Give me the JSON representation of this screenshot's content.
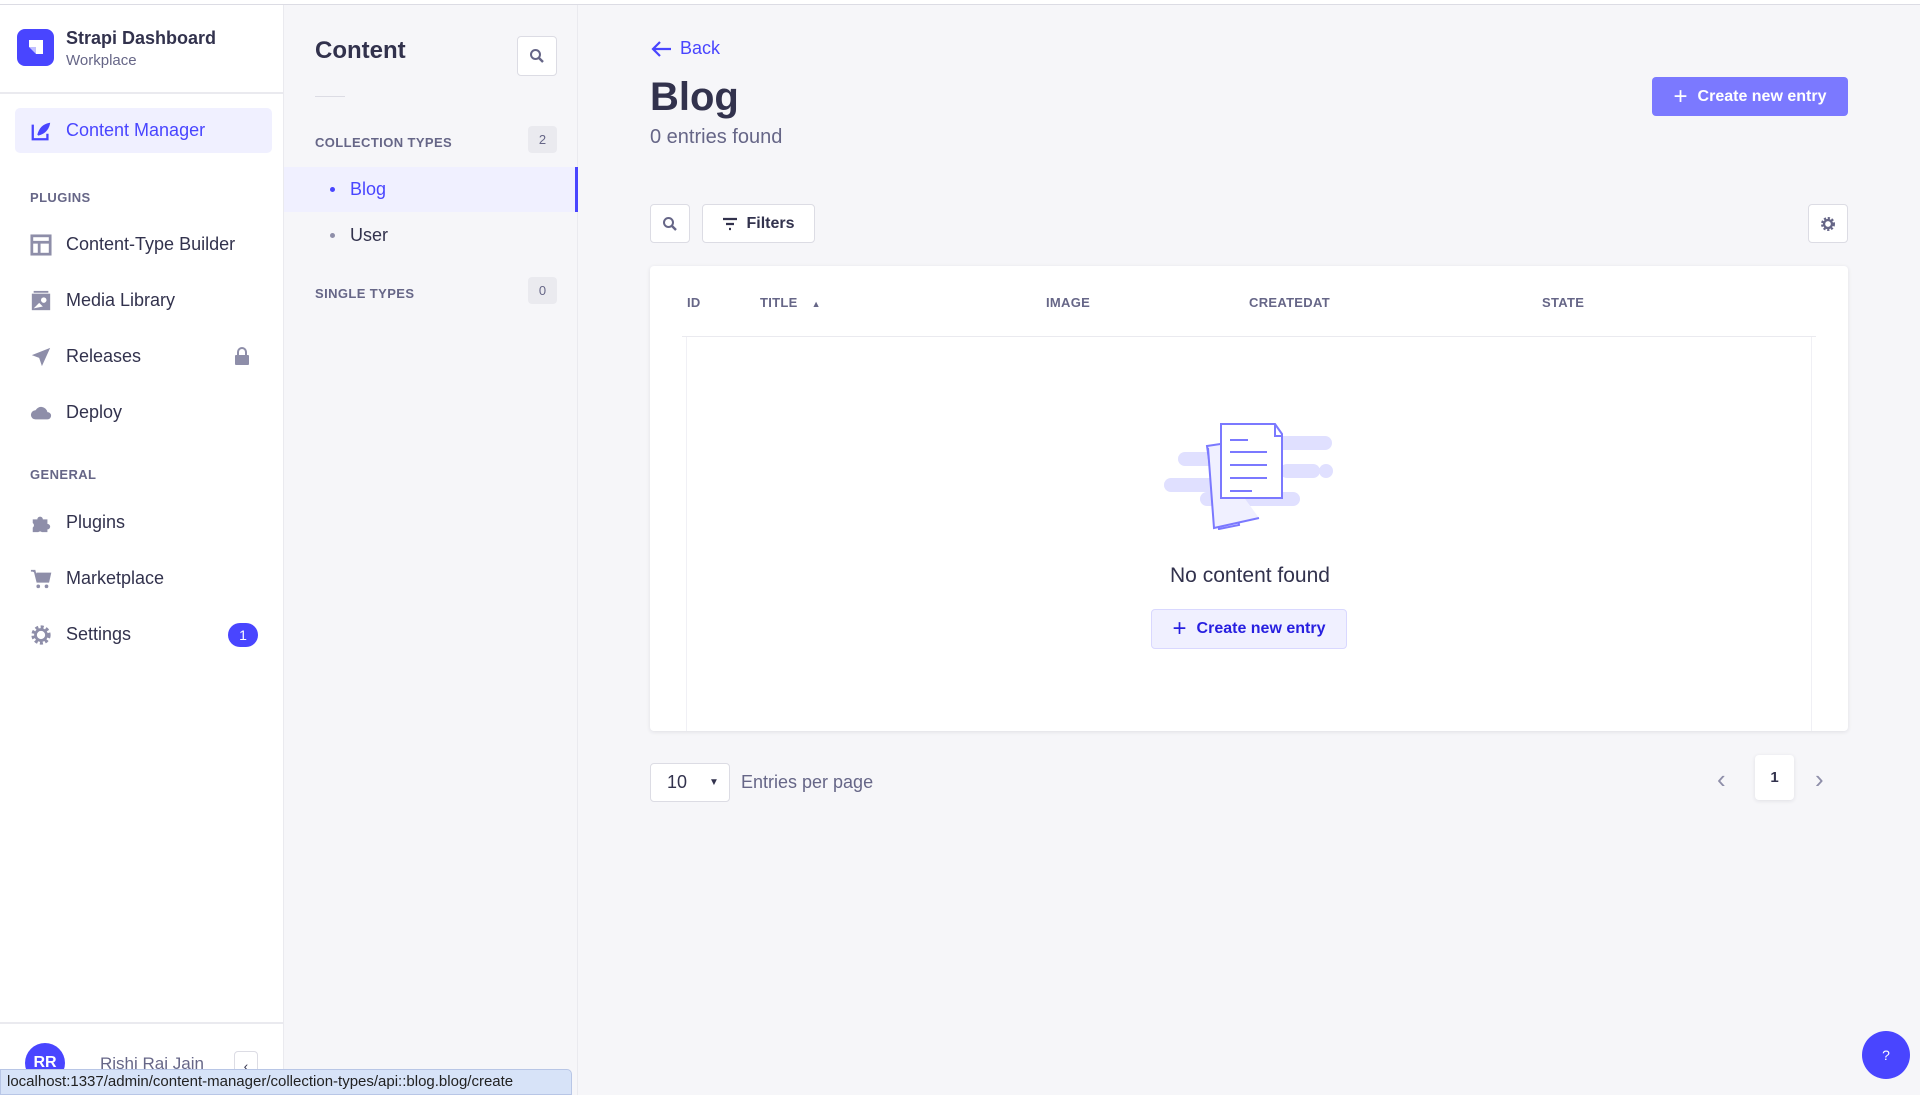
{
  "app": {
    "title": "Strapi Dashboard",
    "subtitle": "Workplace"
  },
  "nav": {
    "main": {
      "label": "Content Manager",
      "icon": "feather-icon"
    },
    "plugins_heading": "PLUGINS",
    "plugins": [
      {
        "label": "Content-Type Builder",
        "icon": "layout-icon"
      },
      {
        "label": "Media Library",
        "icon": "image-icon"
      },
      {
        "label": "Releases",
        "icon": "paper-plane-icon",
        "locked": true
      },
      {
        "label": "Deploy",
        "icon": "cloud-icon"
      }
    ],
    "general_heading": "GENERAL",
    "general": [
      {
        "label": "Plugins",
        "icon": "puzzle-icon"
      },
      {
        "label": "Marketplace",
        "icon": "cart-icon"
      },
      {
        "label": "Settings",
        "icon": "gear-icon",
        "badge": "1"
      }
    ],
    "user": {
      "initials": "RR",
      "name": "Rishi Raj Jain"
    }
  },
  "status_url": "localhost:1337/admin/content-manager/collection-types/api::blog.blog/create",
  "content_panel": {
    "title": "Content",
    "collection_heading": "COLLECTION TYPES",
    "collection_count": "2",
    "collections": [
      {
        "label": "Blog",
        "active": true
      },
      {
        "label": "User",
        "active": false
      }
    ],
    "single_heading": "SINGLE TYPES",
    "single_count": "0"
  },
  "main": {
    "back": "Back",
    "title": "Blog",
    "count": "0 entries found",
    "create_label": "Create new entry",
    "filters_label": "Filters",
    "columns": [
      "ID",
      "TITLE",
      "IMAGE",
      "CREATEDAT",
      "STATE"
    ],
    "sort_column": "TITLE",
    "sort_dir": "asc",
    "empty_text": "No content found",
    "empty_create_label": "Create new entry",
    "page_size": "10",
    "entries_per_page": "Entries per page",
    "current_page": "1",
    "help": "?"
  },
  "colors": {
    "accent": "#4945ff",
    "primary_button": "#7b79ff"
  }
}
